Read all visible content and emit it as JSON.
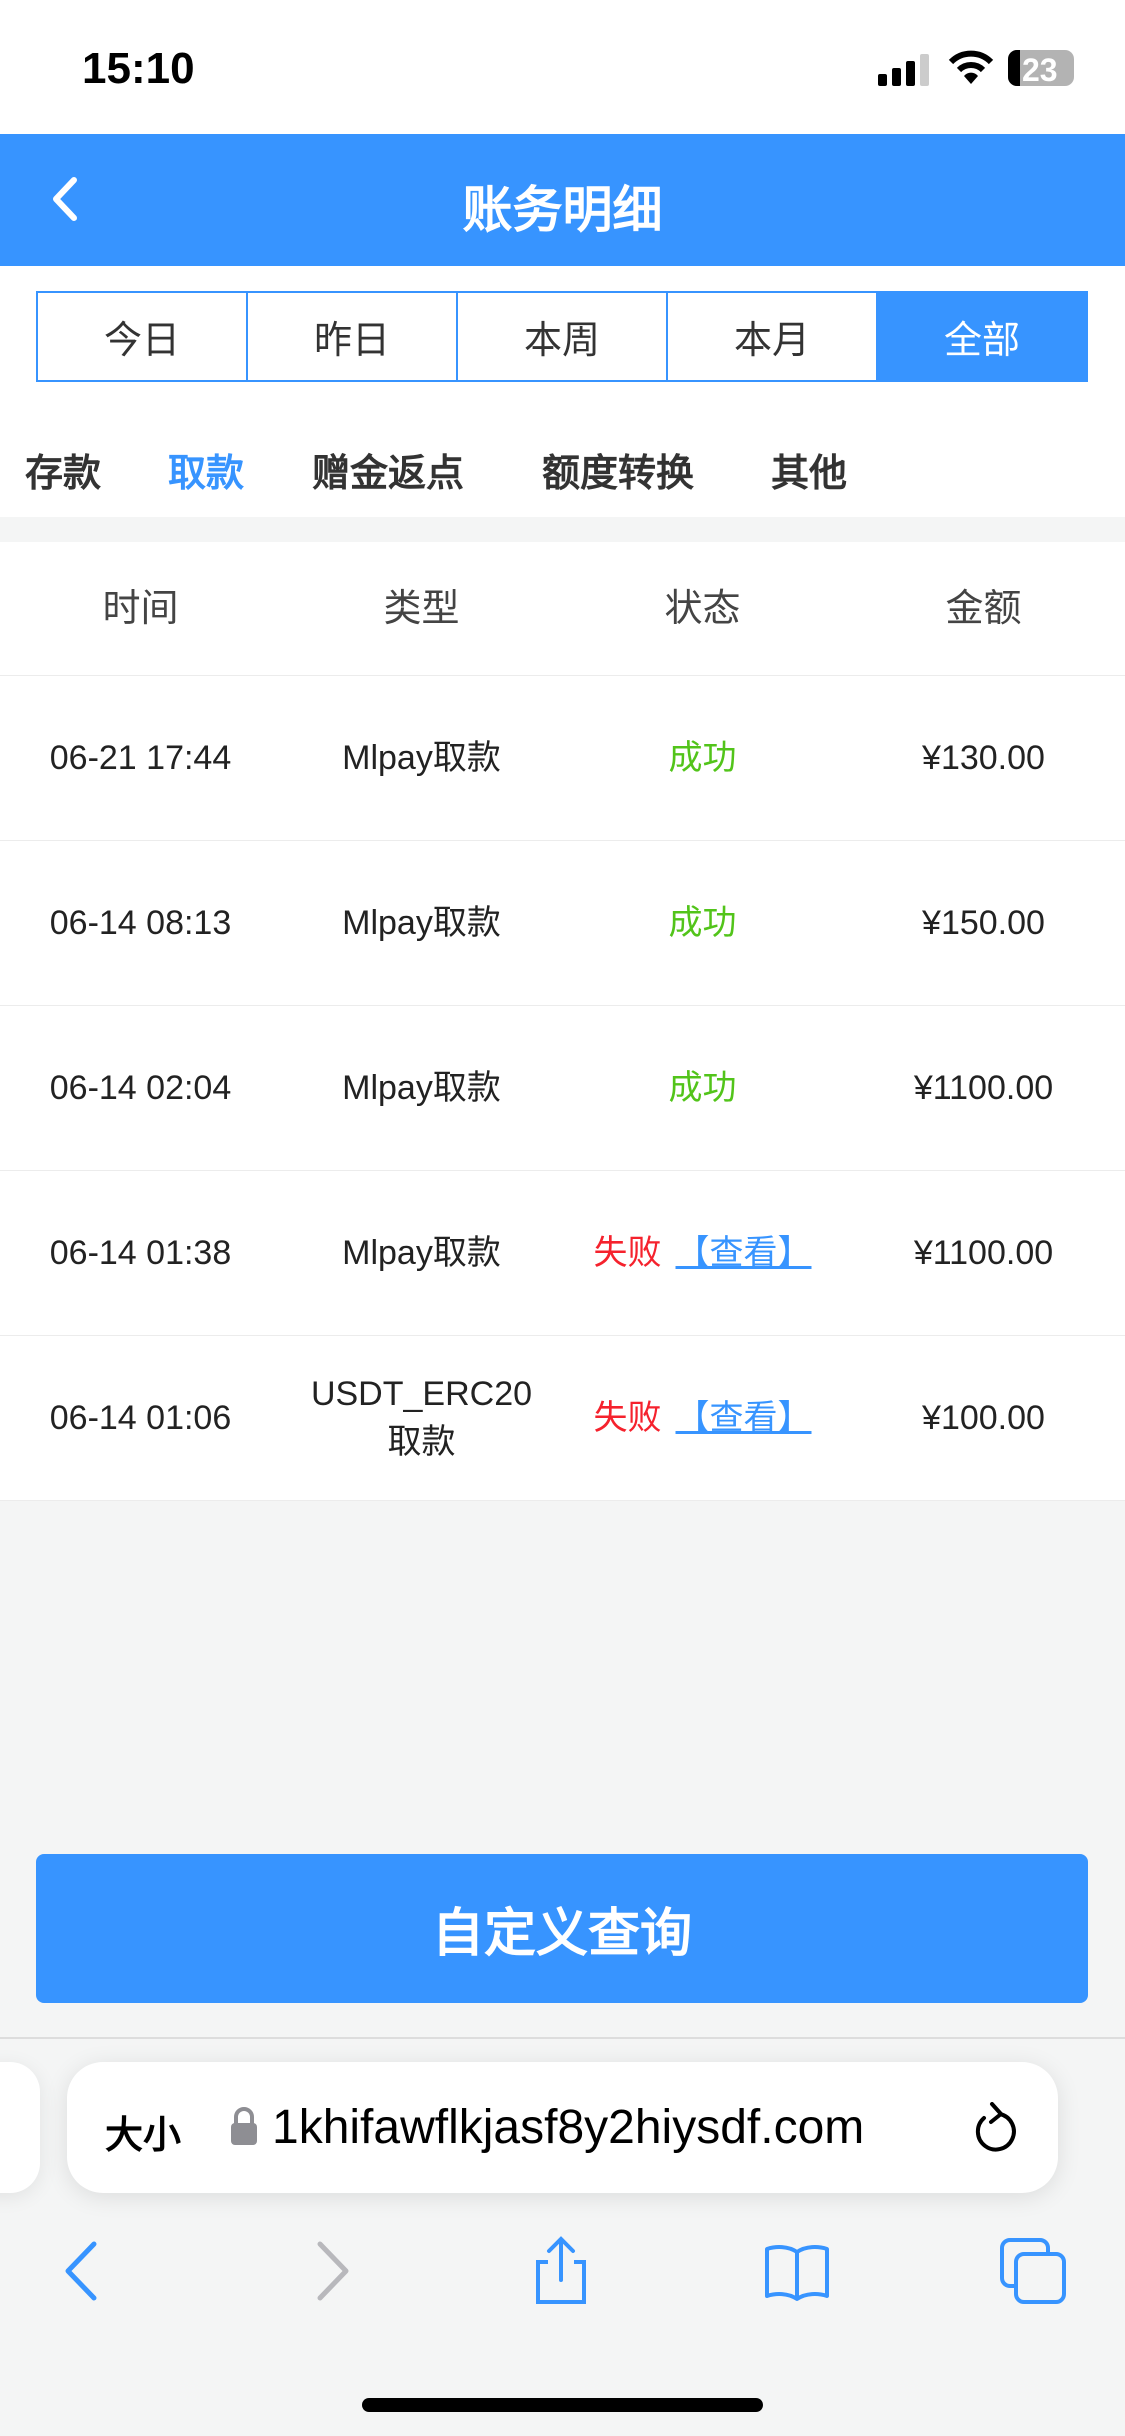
{
  "status_bar": {
    "time": "15:10",
    "battery": "23"
  },
  "header": {
    "title": "账务明细"
  },
  "date_tabs": [
    {
      "label": "今日"
    },
    {
      "label": "昨日"
    },
    {
      "label": "本周"
    },
    {
      "label": "本月"
    },
    {
      "label": "全部",
      "active": true
    }
  ],
  "type_tabs": [
    {
      "label": "存款"
    },
    {
      "label": "取款",
      "active": true
    },
    {
      "label": "赠金返点"
    },
    {
      "label": "额度转换"
    },
    {
      "label": "其他"
    }
  ],
  "table": {
    "columns": [
      "时间",
      "类型",
      "状态",
      "金额"
    ],
    "view_label": "【查看】",
    "rows": [
      {
        "time": "06-21 17:44",
        "type": "Mlpay取款",
        "status": "成功",
        "amount": "¥130.00"
      },
      {
        "time": "06-14 08:13",
        "type": "Mlpay取款",
        "status": "成功",
        "amount": "¥150.00"
      },
      {
        "time": "06-14 02:04",
        "type": "Mlpay取款",
        "status": "成功",
        "amount": "¥1100.00"
      },
      {
        "time": "06-14 01:38",
        "type": "Mlpay取款",
        "status": "失败",
        "amount": "¥1100.00"
      },
      {
        "time": "06-14 01:06",
        "type": "USDT_ERC20取款",
        "status": "失败",
        "amount": "¥100.00"
      }
    ]
  },
  "query_button": "自定义查询",
  "browser": {
    "text_size": "大小",
    "url": "1khifawflkjasf8y2hiysdf.com"
  },
  "colors": {
    "accent": "#3794ff",
    "success": "#52c41a",
    "fail": "#f5222d"
  }
}
